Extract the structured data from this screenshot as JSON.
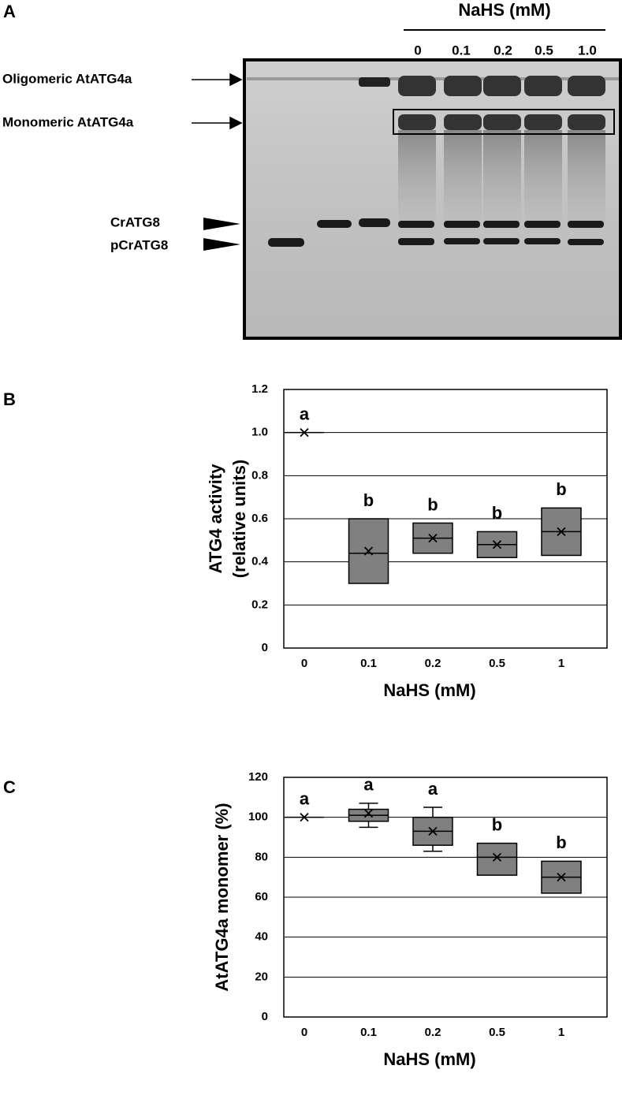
{
  "gel": {
    "panel": "A",
    "header": "NaHS (mM)",
    "lanes": [
      "0",
      "0.1",
      "0.2",
      "0.5",
      "1.0"
    ],
    "labels": [
      "Oligomeric AtATG4a",
      "Monomeric AtATG4a",
      "CrATG8",
      "pCrATG8"
    ]
  },
  "chart_data": [
    {
      "type": "box",
      "panel": "B",
      "xlabel": "NaHS (mM)",
      "ylabel": [
        "ATG4 activity",
        "(relative units)"
      ],
      "categories": [
        "0",
        "0.1",
        "0.2",
        "0.5",
        "1"
      ],
      "q1": [
        1,
        0.3,
        0.44,
        0.42,
        0.43
      ],
      "median": [
        1,
        0.44,
        0.51,
        0.48,
        0.54
      ],
      "q3": [
        1,
        0.6,
        0.58,
        0.54,
        0.65
      ],
      "mean": [
        1,
        0.45,
        0.51,
        0.48,
        0.54
      ],
      "letters": [
        "a",
        "b",
        "b",
        "b",
        "b"
      ],
      "color": "#808080",
      "ylim": [
        0,
        1.2
      ],
      "yticks": [
        0,
        0.2,
        0.4,
        0.6,
        0.8,
        {
          "value": 1,
          "label": "1.0"
        },
        1.2
      ],
      "grid": true
    },
    {
      "type": "box",
      "panel": "C",
      "xlabel": "NaHS (mM)",
      "ylabel": [
        "AtATG4a monomer (%)"
      ],
      "categories": [
        "0",
        "0.1",
        "0.2",
        "0.5",
        "1"
      ],
      "min": [
        null,
        95,
        83,
        null,
        null
      ],
      "q1": [
        100,
        98,
        86,
        71,
        62
      ],
      "median": [
        100,
        101,
        93,
        80,
        70
      ],
      "q3": [
        100,
        104,
        100,
        87,
        78
      ],
      "max": [
        null,
        107,
        105,
        null,
        null
      ],
      "mean": [
        100,
        102,
        93,
        80,
        70
      ],
      "letters": [
        "a",
        "a",
        "a",
        "b",
        "b"
      ],
      "color": "#808080",
      "ylim": [
        0,
        120
      ],
      "yticks": [
        0,
        20,
        40,
        60,
        80,
        100,
        120
      ],
      "grid": true
    }
  ]
}
